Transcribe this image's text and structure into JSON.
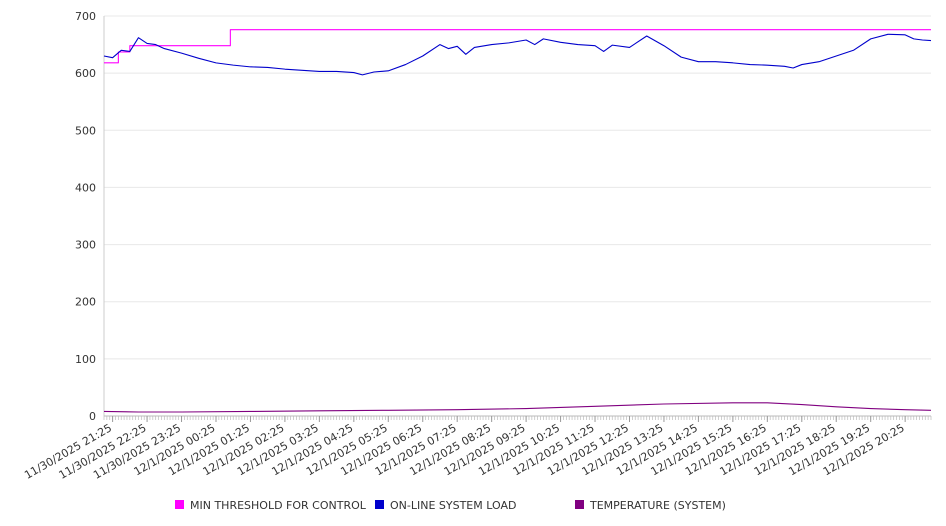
{
  "chart_data": {
    "type": "line",
    "ylim": [
      0,
      700
    ],
    "yticks": [
      0,
      100,
      200,
      300,
      400,
      500,
      600,
      700
    ],
    "x_range": [
      "11/30/2025 21:10",
      "12/1/2025 21:10"
    ],
    "xticks": [
      "11/30/2025 21:25",
      "11/30/2025 22:25",
      "11/30/2025 23:25",
      "12/1/2025 00:25",
      "12/1/2025 01:25",
      "12/1/2025 02:25",
      "12/1/2025 03:25",
      "12/1/2025 04:25",
      "12/1/2025 05:25",
      "12/1/2025 06:25",
      "12/1/2025 07:25",
      "12/1/2025 08:25",
      "12/1/2025 09:25",
      "12/1/2025 10:25",
      "12/1/2025 11:25",
      "12/1/2025 12:25",
      "12/1/2025 13:25",
      "12/1/2025 14:25",
      "12/1/2025 15:25",
      "12/1/2025 16:25",
      "12/1/2025 17:25",
      "12/1/2025 18:25",
      "12/1/2025 19:25",
      "12/1/2025 20:25"
    ],
    "grid": "horizontal",
    "legend_position": "bottom",
    "series": [
      {
        "name": "MIN THRESHOLD FOR CONTROL",
        "color": "#ff00ff",
        "step": true,
        "points": [
          [
            "11/30/2025 21:10",
            618
          ],
          [
            "11/30/2025 21:35",
            618
          ],
          [
            "11/30/2025 21:35",
            637
          ],
          [
            "11/30/2025 21:55",
            637
          ],
          [
            "11/30/2025 21:55",
            648
          ],
          [
            "12/1/2025 00:50",
            648
          ],
          [
            "12/1/2025 00:50",
            676
          ],
          [
            "12/1/2025 21:10",
            676
          ]
        ]
      },
      {
        "name": "ON-LINE SYSTEM LOAD",
        "color": "#0000cc",
        "step": false,
        "points": [
          [
            "11/30/2025 21:10",
            630
          ],
          [
            "11/30/2025 21:25",
            627
          ],
          [
            "11/30/2025 21:40",
            640
          ],
          [
            "11/30/2025 21:55",
            638
          ],
          [
            "11/30/2025 22:10",
            662
          ],
          [
            "11/30/2025 22:25",
            652
          ],
          [
            "11/30/2025 22:40",
            650
          ],
          [
            "11/30/2025 22:55",
            643
          ],
          [
            "11/30/2025 23:25",
            635
          ],
          [
            "11/30/2025 23:55",
            626
          ],
          [
            "12/1/2025 00:25",
            618
          ],
          [
            "12/1/2025 00:55",
            614
          ],
          [
            "12/1/2025 01:25",
            611
          ],
          [
            "12/1/2025 01:55",
            610
          ],
          [
            "12/1/2025 02:25",
            607
          ],
          [
            "12/1/2025 02:55",
            605
          ],
          [
            "12/1/2025 03:25",
            603
          ],
          [
            "12/1/2025 03:55",
            603
          ],
          [
            "12/1/2025 04:25",
            601
          ],
          [
            "12/1/2025 04:40",
            597
          ],
          [
            "12/1/2025 05:00",
            602
          ],
          [
            "12/1/2025 05:25",
            604
          ],
          [
            "12/1/2025 05:55",
            615
          ],
          [
            "12/1/2025 06:25",
            630
          ],
          [
            "12/1/2025 06:55",
            650
          ],
          [
            "12/1/2025 07:10",
            643
          ],
          [
            "12/1/2025 07:25",
            647
          ],
          [
            "12/1/2025 07:40",
            633
          ],
          [
            "12/1/2025 07:55",
            645
          ],
          [
            "12/1/2025 08:25",
            650
          ],
          [
            "12/1/2025 08:55",
            653
          ],
          [
            "12/1/2025 09:25",
            658
          ],
          [
            "12/1/2025 09:40",
            650
          ],
          [
            "12/1/2025 09:55",
            660
          ],
          [
            "12/1/2025 10:25",
            654
          ],
          [
            "12/1/2025 10:55",
            650
          ],
          [
            "12/1/2025 11:25",
            648
          ],
          [
            "12/1/2025 11:40",
            638
          ],
          [
            "12/1/2025 11:55",
            649
          ],
          [
            "12/1/2025 12:25",
            645
          ],
          [
            "12/1/2025 12:55",
            665
          ],
          [
            "12/1/2025 13:25",
            648
          ],
          [
            "12/1/2025 13:55",
            628
          ],
          [
            "12/1/2025 14:25",
            620
          ],
          [
            "12/1/2025 14:55",
            620
          ],
          [
            "12/1/2025 15:25",
            618
          ],
          [
            "12/1/2025 15:55",
            615
          ],
          [
            "12/1/2025 16:25",
            614
          ],
          [
            "12/1/2025 16:55",
            612
          ],
          [
            "12/1/2025 17:10",
            609
          ],
          [
            "12/1/2025 17:25",
            615
          ],
          [
            "12/1/2025 17:55",
            620
          ],
          [
            "12/1/2025 18:25",
            630
          ],
          [
            "12/1/2025 18:55",
            640
          ],
          [
            "12/1/2025 19:25",
            660
          ],
          [
            "12/1/2025 19:55",
            668
          ],
          [
            "12/1/2025 20:25",
            667
          ],
          [
            "12/1/2025 20:40",
            660
          ],
          [
            "12/1/2025 20:55",
            658
          ],
          [
            "12/1/2025 21:10",
            657
          ]
        ]
      },
      {
        "name": "TEMPERATURE (SYSTEM)",
        "color": "#800080",
        "step": false,
        "points": [
          [
            "11/30/2025 21:10",
            8
          ],
          [
            "11/30/2025 22:10",
            7
          ],
          [
            "11/30/2025 23:25",
            7
          ],
          [
            "12/1/2025 01:25",
            8
          ],
          [
            "12/1/2025 03:25",
            9
          ],
          [
            "12/1/2025 05:25",
            10
          ],
          [
            "12/1/2025 07:25",
            11
          ],
          [
            "12/1/2025 09:25",
            13
          ],
          [
            "12/1/2025 11:25",
            17
          ],
          [
            "12/1/2025 13:25",
            21
          ],
          [
            "12/1/2025 15:25",
            23
          ],
          [
            "12/1/2025 16:25",
            23
          ],
          [
            "12/1/2025 17:25",
            20
          ],
          [
            "12/1/2025 18:25",
            16
          ],
          [
            "12/1/2025 19:25",
            13
          ],
          [
            "12/1/2025 20:25",
            11
          ],
          [
            "12/1/2025 21:10",
            10
          ]
        ]
      }
    ]
  }
}
